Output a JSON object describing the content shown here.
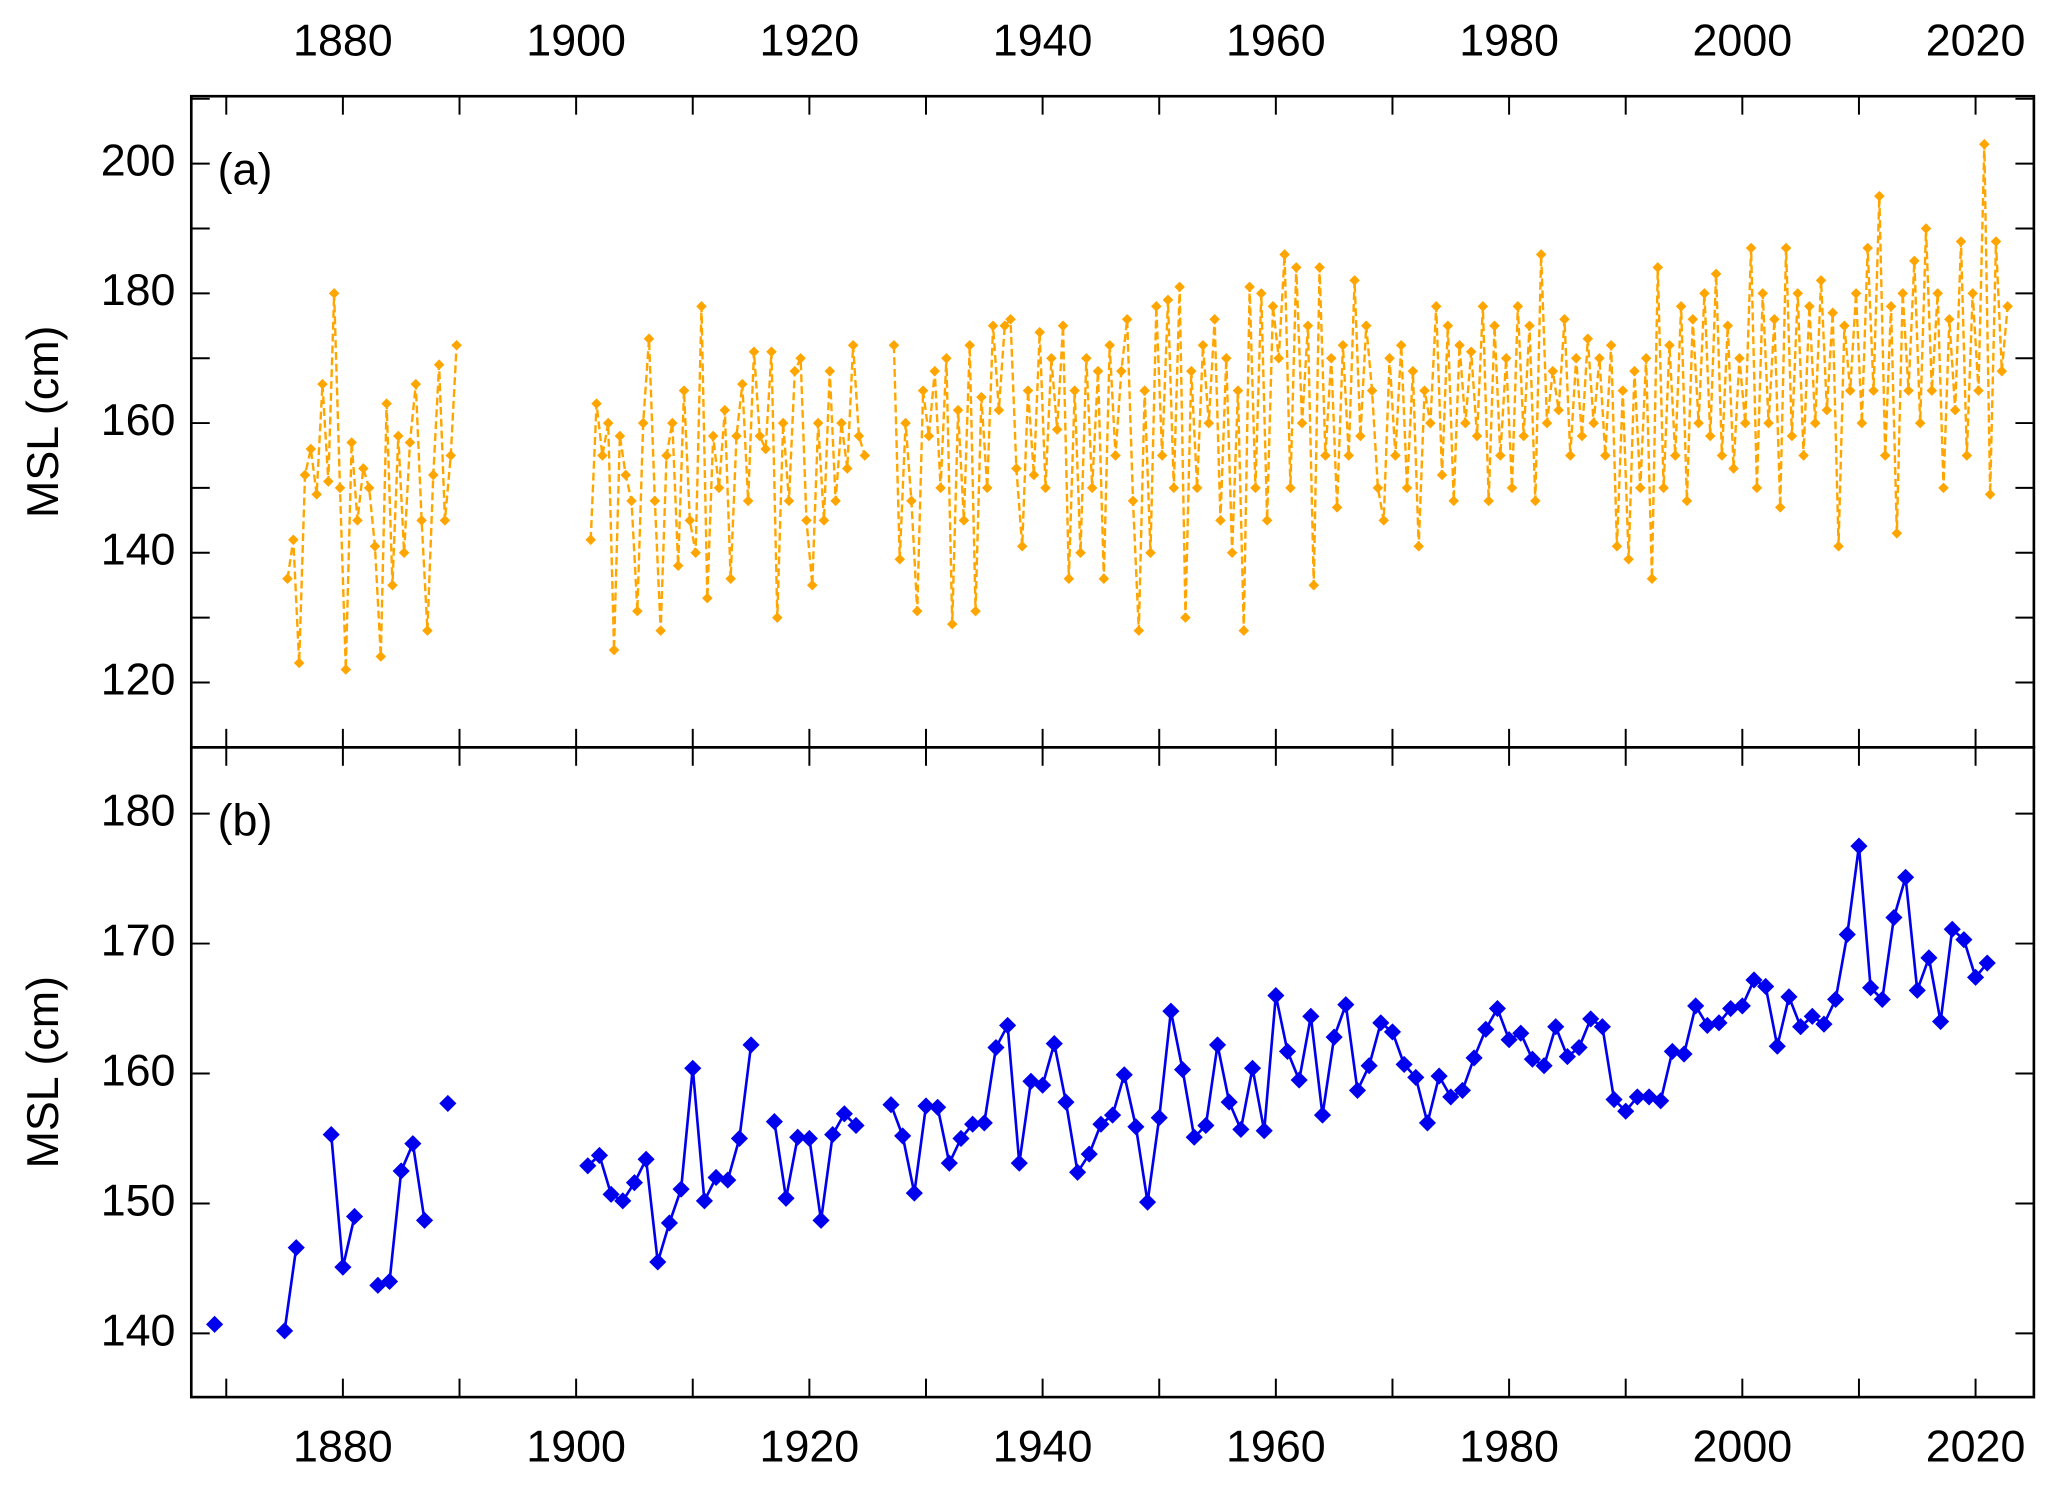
{
  "chart_data": [
    {
      "type": "line",
      "panel_label": "(a)",
      "y_label": "MSL (cm)",
      "xaxis_position": "top",
      "marker": "diamond",
      "dashed": true,
      "xlim": [
        1867,
        2025
      ],
      "xticks": [
        1880,
        1900,
        1920,
        1940,
        1960,
        1980,
        2000,
        2020
      ],
      "xminorticks": [
        1870,
        1890,
        1910,
        1930,
        1950,
        1970,
        1990,
        2010
      ],
      "ylim": [
        110,
        210.4
      ],
      "yticks": [
        120,
        140,
        160,
        180,
        200
      ],
      "yminorticks": [
        130,
        150,
        170,
        190,
        210
      ],
      "x": [
        1875.25,
        1875.75,
        1876.25,
        1876.75,
        1877.25,
        1877.75,
        1878.25,
        1878.75,
        1879.25,
        1879.75,
        1880.25,
        1880.75,
        1881.25,
        1881.75,
        1882.25,
        1882.75,
        1883.25,
        1883.75,
        1884.25,
        1884.75,
        1885.25,
        1885.75,
        1886.25,
        1886.75,
        1887.25,
        1887.75,
        1888.25,
        1888.75,
        1889.25,
        1889.75,
        1890,
        1901.25,
        1901.75,
        1902.25,
        1902.75,
        1903.25,
        1903.75,
        1904.25,
        1904.75,
        1905.25,
        1905.75,
        1906.25,
        1906.75,
        1907.25,
        1907.75,
        1908.25,
        1908.75,
        1909.25,
        1909.75,
        1910.25,
        1910.75,
        1911.25,
        1911.75,
        1912.25,
        1912.75,
        1913.25,
        1913.75,
        1914.25,
        1914.75,
        1915.25,
        1915.75,
        1916.25,
        1916.75,
        1917.25,
        1917.75,
        1918.25,
        1918.75,
        1919.25,
        1919.75,
        1920.25,
        1920.75,
        1921.25,
        1921.75,
        1922.25,
        1922.75,
        1923.25,
        1923.75,
        1924.25,
        1924.75,
        1925,
        1927.25,
        1927.75,
        1928.25,
        1928.75,
        1929.25,
        1929.75,
        1930.25,
        1930.75,
        1931.25,
        1931.75,
        1932.25,
        1932.75,
        1933.25,
        1933.75,
        1934.25,
        1934.75,
        1935.25,
        1935.75,
        1936.25,
        1936.75,
        1937.25,
        1937.75,
        1938.25,
        1938.75,
        1939.25,
        1939.75,
        1940.25,
        1940.75,
        1941.25,
        1941.75,
        1942.25,
        1942.75,
        1943.25,
        1943.75,
        1944.25,
        1944.75,
        1945.25,
        1945.75,
        1946.25,
        1946.75,
        1947.25,
        1947.75,
        1948.25,
        1948.75,
        1949.25,
        1949.75,
        1950.25,
        1950.75,
        1951.25,
        1951.75,
        1952.25,
        1952.75,
        1953.25,
        1953.75,
        1954.25,
        1954.75,
        1955.25,
        1955.75,
        1956.25,
        1956.75,
        1957.25,
        1957.75,
        1958.25,
        1958.75,
        1959.25,
        1959.75,
        1960.25,
        1960.75,
        1961.25,
        1961.75,
        1962.25,
        1962.75,
        1963.25,
        1963.75,
        1964.25,
        1964.75,
        1965.25,
        1965.75,
        1966.25,
        1966.75,
        1967.25,
        1967.75,
        1968.25,
        1968.75,
        1969.25,
        1969.75,
        1970.25,
        1970.75,
        1971.25,
        1971.75,
        1972.25,
        1972.75,
        1973.25,
        1973.75,
        1974.25,
        1974.75,
        1975.25,
        1975.75,
        1976.25,
        1976.75,
        1977.25,
        1977.75,
        1978.25,
        1978.75,
        1979.25,
        1979.75,
        1980.25,
        1980.75,
        1981.25,
        1981.75,
        1982.25,
        1982.75,
        1983.25,
        1983.75,
        1984.25,
        1984.75,
        1985.25,
        1985.75,
        1986.25,
        1986.75,
        1987.25,
        1987.75,
        1988.25,
        1988.75,
        1989.25,
        1989.75,
        1990.25,
        1990.75,
        1991.25,
        1991.75,
        1992.25,
        1992.75,
        1993.25,
        1993.75,
        1994.25,
        1994.75,
        1995.25,
        1995.75,
        1996.25,
        1996.75,
        1997.25,
        1997.75,
        1998.25,
        1998.75,
        1999.25,
        1999.75,
        2000.25,
        2000.75,
        2001.25,
        2001.75,
        2002.25,
        2002.75,
        2003.25,
        2003.75,
        2004.25,
        2004.75,
        2005.25,
        2005.75,
        2006.25,
        2006.75,
        2007.25,
        2007.75,
        2008.25,
        2008.75,
        2009.25,
        2009.75,
        2010.25,
        2010.75,
        2011.25,
        2011.75,
        2012.25,
        2012.75,
        2013.25,
        2013.75,
        2014.25,
        2014.75,
        2015.25,
        2015.75,
        2016.25,
        2016.75,
        2017.25,
        2017.75,
        2018.25,
        2018.75,
        2019.25,
        2019.75,
        2020.25,
        2020.75,
        2021.25,
        2021.75,
        2022.25,
        2022.75
      ],
      "series": [
        {
          "color": "#ffa500",
          "values": [
            136,
            142,
            123,
            152,
            156,
            149,
            166,
            151,
            180,
            150,
            122,
            157,
            145,
            153,
            150,
            141,
            124,
            163,
            135,
            158,
            140,
            157,
            166,
            145,
            128,
            152,
            169,
            145,
            155,
            172,
            null,
            142,
            163,
            155,
            160,
            125,
            158,
            152,
            148,
            131,
            160,
            173,
            148,
            128,
            155,
            160,
            138,
            165,
            145,
            140,
            178,
            133,
            158,
            150,
            162,
            136,
            158,
            166,
            148,
            171,
            158,
            156,
            171,
            130,
            160,
            148,
            168,
            170,
            145,
            135,
            160,
            145,
            168,
            148,
            160,
            153,
            172,
            158,
            155,
            null,
            172,
            139,
            160,
            148,
            131,
            165,
            158,
            168,
            150,
            170,
            129,
            162,
            145,
            172,
            131,
            164,
            150,
            175,
            162,
            175,
            176,
            153,
            141,
            165,
            152,
            174,
            150,
            170,
            159,
            175,
            136,
            165,
            140,
            170,
            150,
            168,
            136,
            172,
            155,
            168,
            176,
            148,
            128,
            165,
            140,
            178,
            155,
            179,
            150,
            181,
            130,
            168,
            150,
            172,
            160,
            176,
            145,
            170,
            140,
            165,
            128,
            181,
            150,
            180,
            145,
            178,
            170,
            186,
            150,
            184,
            160,
            175,
            135,
            184,
            155,
            170,
            147,
            172,
            155,
            182,
            158,
            175,
            165,
            150,
            145,
            170,
            155,
            172,
            150,
            168,
            141,
            165,
            160,
            178,
            152,
            175,
            148,
            172,
            160,
            171,
            158,
            178,
            148,
            175,
            155,
            170,
            150,
            178,
            158,
            175,
            148,
            186,
            160,
            168,
            162,
            176,
            155,
            170,
            158,
            173,
            160,
            170,
            155,
            172,
            141,
            165,
            139,
            168,
            150,
            170,
            136,
            184,
            150,
            172,
            155,
            178,
            148,
            176,
            160,
            180,
            158,
            183,
            155,
            175,
            153,
            170,
            160,
            187,
            150,
            180,
            160,
            176,
            147,
            187,
            158,
            180,
            155,
            178,
            160,
            182,
            162,
            177,
            141,
            175,
            165,
            180,
            160,
            187,
            165,
            195,
            155,
            178,
            143,
            180,
            165,
            185,
            160,
            190,
            165,
            180,
            150,
            176,
            162,
            188,
            155,
            180,
            165,
            203,
            149,
            188,
            168,
            178
          ]
        }
      ]
    },
    {
      "type": "line",
      "panel_label": "(b)",
      "y_label": "MSL (cm)",
      "xaxis_position": "bottom",
      "marker": "diamond",
      "dashed": false,
      "xlim": [
        1867,
        2025
      ],
      "xticks": [
        1880,
        1900,
        1920,
        1940,
        1960,
        1980,
        2000,
        2020
      ],
      "xminorticks": [
        1870,
        1890,
        1910,
        1930,
        1950,
        1970,
        1990,
        2010
      ],
      "ylim": [
        135.1,
        185.1
      ],
      "yticks": [
        140,
        150,
        160,
        170,
        180
      ],
      "yminorticks": [],
      "x": [
        1869,
        1870,
        1875,
        1876,
        1877,
        1879,
        1880,
        1881,
        1882,
        1883,
        1884,
        1885,
        1886,
        1887,
        1888,
        1889,
        1890,
        1901,
        1902,
        1903,
        1904,
        1905,
        1906,
        1907,
        1908,
        1909,
        1910,
        1911,
        1912,
        1913,
        1914,
        1915,
        1916,
        1917,
        1918,
        1919,
        1920,
        1921,
        1922,
        1923,
        1924,
        1925,
        1927,
        1928,
        1929,
        1930,
        1931,
        1932,
        1933,
        1934,
        1935,
        1936,
        1937,
        1938,
        1939,
        1940,
        1941,
        1942,
        1943,
        1944,
        1945,
        1946,
        1947,
        1948,
        1949,
        1950,
        1951,
        1952,
        1953,
        1954,
        1955,
        1956,
        1957,
        1958,
        1959,
        1960,
        1961,
        1962,
        1963,
        1964,
        1965,
        1966,
        1967,
        1968,
        1969,
        1970,
        1971,
        1972,
        1973,
        1974,
        1975,
        1976,
        1977,
        1978,
        1979,
        1980,
        1981,
        1982,
        1983,
        1984,
        1985,
        1986,
        1987,
        1988,
        1989,
        1990,
        1991,
        1992,
        1993,
        1994,
        1995,
        1996,
        1997,
        1998,
        1999,
        2000,
        2001,
        2002,
        2003,
        2004,
        2005,
        2006,
        2007,
        2008,
        2009,
        2010,
        2011,
        2012,
        2013,
        2014,
        2015,
        2016,
        2017,
        2018,
        2019,
        2020,
        2021
      ],
      "series": [
        {
          "color": "#0000ee",
          "values": [
            140.7,
            null,
            140.2,
            146.6,
            null,
            155.3,
            145.1,
            149.0,
            null,
            143.7,
            144.0,
            152.5,
            154.6,
            148.7,
            null,
            157.7,
            null,
            152.9,
            153.7,
            150.7,
            150.2,
            151.6,
            153.4,
            145.5,
            148.5,
            151.1,
            160.4,
            150.2,
            152.0,
            151.8,
            155.0,
            162.2,
            null,
            156.3,
            150.4,
            155.1,
            155.0,
            148.7,
            155.3,
            156.9,
            156.0,
            null,
            157.6,
            155.2,
            150.8,
            157.5,
            157.4,
            153.1,
            155.0,
            156.1,
            156.2,
            162.0,
            163.7,
            153.1,
            159.4,
            159.1,
            162.3,
            157.8,
            152.4,
            153.8,
            156.1,
            156.8,
            159.9,
            155.9,
            150.1,
            156.6,
            164.8,
            160.3,
            155.1,
            156.0,
            162.2,
            157.8,
            155.7,
            160.4,
            155.6,
            166.0,
            161.7,
            159.5,
            164.4,
            156.8,
            162.8,
            165.3,
            158.7,
            160.6,
            163.9,
            163.2,
            160.7,
            159.7,
            156.2,
            159.8,
            158.2,
            158.7,
            161.2,
            163.4,
            165.0,
            162.6,
            163.1,
            161.1,
            160.6,
            163.6,
            161.3,
            162.0,
            164.2,
            163.6,
            158.0,
            157.1,
            158.2,
            158.2,
            157.9,
            161.7,
            161.5,
            165.2,
            163.7,
            163.9,
            165.0,
            165.2,
            167.2,
            166.7,
            162.1,
            165.9,
            163.6,
            164.4,
            163.8,
            165.7,
            170.7,
            177.5,
            166.6,
            165.7,
            172.0,
            175.1,
            166.4,
            168.9,
            164.0,
            171.1,
            170.3,
            167.4,
            168.5
          ]
        }
      ]
    }
  ]
}
